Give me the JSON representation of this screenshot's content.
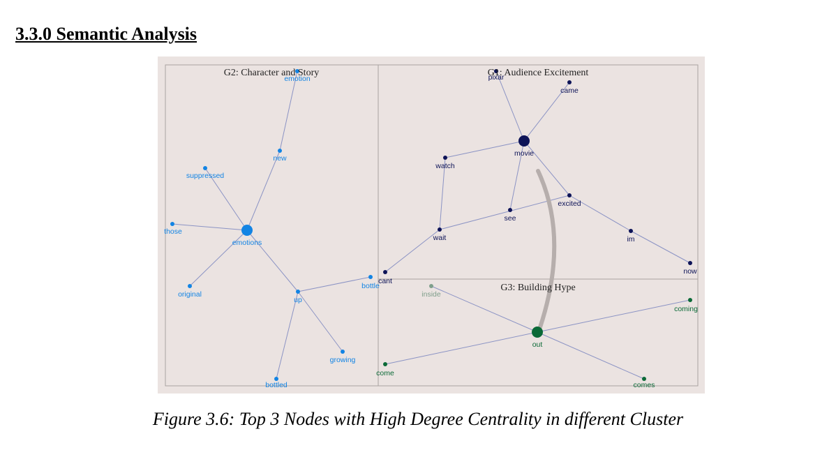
{
  "heading": "3.3.0 Semantic Analysis",
  "caption": "Figure 3.6: Top 3 Nodes with High Degree Centrality in different Cluster",
  "colors": {
    "background": "#ebe3e1",
    "g1": "#0d1357",
    "g2": "#1284e4",
    "g3": "#0b6a37",
    "g3_faded": "#7f9f8b",
    "edge": "#8b93c4",
    "inter_cluster": "#b6aeac",
    "frame": "#a9a3a1"
  },
  "clusters": [
    {
      "id": "G2",
      "title": "G2: Character and Story"
    },
    {
      "id": "G1",
      "title": "G1: Audience Excitement"
    },
    {
      "id": "G3",
      "title": "G3: Building Hype"
    }
  ],
  "nodes": [
    {
      "id": "emotion",
      "label": "emotion",
      "group": "G2"
    },
    {
      "id": "new",
      "label": "new",
      "group": "G2"
    },
    {
      "id": "suppressed",
      "label": "suppressed",
      "group": "G2"
    },
    {
      "id": "those",
      "label": "those",
      "group": "G2"
    },
    {
      "id": "emotions",
      "label": "emotions",
      "group": "G2",
      "hub": true
    },
    {
      "id": "original",
      "label": "original",
      "group": "G2"
    },
    {
      "id": "up",
      "label": "up",
      "group": "G2"
    },
    {
      "id": "bottle",
      "label": "bottle",
      "group": "G2"
    },
    {
      "id": "growing",
      "label": "growing",
      "group": "G2"
    },
    {
      "id": "bottled",
      "label": "bottled",
      "group": "G2"
    },
    {
      "id": "pixar",
      "label": "pixar",
      "group": "G1"
    },
    {
      "id": "came",
      "label": "came",
      "group": "G1"
    },
    {
      "id": "movie",
      "label": "movie",
      "group": "G1",
      "hub": true
    },
    {
      "id": "watch",
      "label": "watch",
      "group": "G1"
    },
    {
      "id": "excited",
      "label": "excited",
      "group": "G1"
    },
    {
      "id": "see",
      "label": "see",
      "group": "G1"
    },
    {
      "id": "wait",
      "label": "wait",
      "group": "G1"
    },
    {
      "id": "im",
      "label": "im",
      "group": "G1"
    },
    {
      "id": "now",
      "label": "now",
      "group": "G1"
    },
    {
      "id": "cant",
      "label": "cant",
      "group": "G1"
    },
    {
      "id": "inside",
      "label": "inside",
      "group": "G3",
      "faded": true
    },
    {
      "id": "coming",
      "label": "coming",
      "group": "G3"
    },
    {
      "id": "out",
      "label": "out",
      "group": "G3",
      "hub": true
    },
    {
      "id": "come",
      "label": "come",
      "group": "G3"
    },
    {
      "id": "comes",
      "label": "comes",
      "group": "G3"
    }
  ],
  "edges": [
    [
      "emotion",
      "new"
    ],
    [
      "new",
      "emotions"
    ],
    [
      "suppressed",
      "emotions"
    ],
    [
      "those",
      "emotions"
    ],
    [
      "original",
      "emotions"
    ],
    [
      "emotions",
      "up"
    ],
    [
      "up",
      "bottle"
    ],
    [
      "up",
      "growing"
    ],
    [
      "up",
      "bottled"
    ],
    [
      "pixar",
      "movie"
    ],
    [
      "came",
      "movie"
    ],
    [
      "watch",
      "movie"
    ],
    [
      "movie",
      "excited"
    ],
    [
      "movie",
      "see"
    ],
    [
      "watch",
      "wait"
    ],
    [
      "wait",
      "excited"
    ],
    [
      "excited",
      "im"
    ],
    [
      "im",
      "now"
    ],
    [
      "wait",
      "cant"
    ],
    [
      "inside",
      "out"
    ],
    [
      "out",
      "coming"
    ],
    [
      "out",
      "come"
    ],
    [
      "out",
      "comes"
    ]
  ],
  "inter_cluster_link": [
    "movie",
    "out"
  ]
}
